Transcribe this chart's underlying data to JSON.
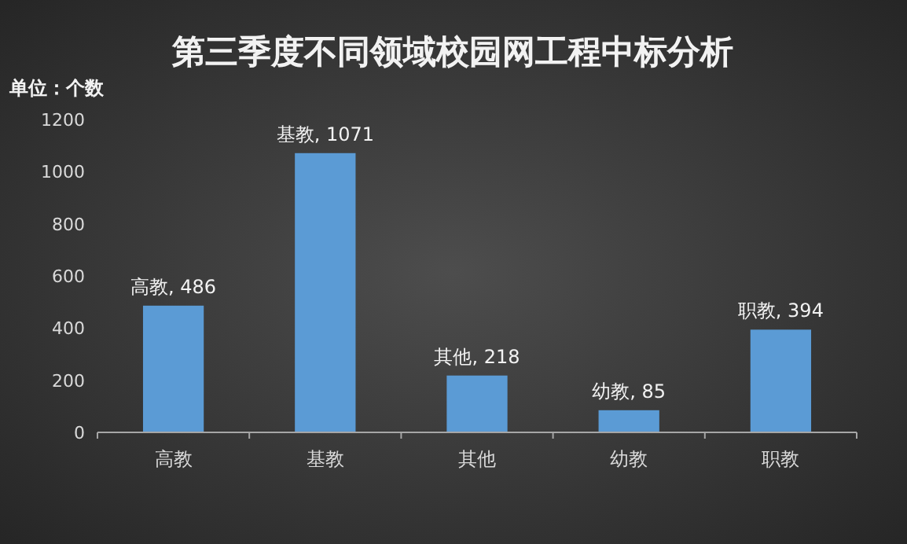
{
  "chart_data": {
    "type": "bar",
    "title": "第三季度不同领域校园网工程中标分析",
    "ylabel": "单位：个数",
    "categories": [
      "高教",
      "基教",
      "其他",
      "幼教",
      "职教"
    ],
    "values": [
      486,
      1071,
      218,
      85,
      394
    ],
    "value_labels": [
      "高教, 486",
      "基教, 1071",
      "其他, 218",
      "幼教, 85",
      "职教, 394"
    ],
    "color": "#5b9bd5",
    "ylim": [
      0,
      1200
    ],
    "yticks": [
      0,
      200,
      400,
      600,
      800,
      1000,
      1200
    ],
    "grid": false
  }
}
